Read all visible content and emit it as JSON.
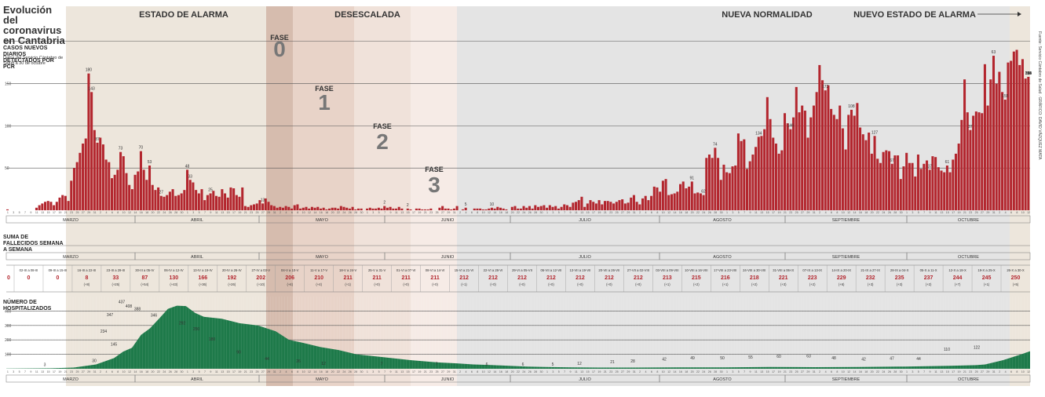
{
  "title": "Evolución del coronavirus en Cantabria",
  "source": "Datos del Servicio Cántabro de Salud a 30 de octubre",
  "credit": "Fuente: Servicio Cántabro de Salud . GRÁFICO: DAVID VÁZQUEZ MATA",
  "colors": {
    "cases": "#b3262e",
    "hospital": "#1e7a4a",
    "stage_alarm": "#ede6dc",
    "fase0": "#d6bcae",
    "fase1": "#e8d3c8",
    "fase2": "#f0e2da",
    "fase3": "#f6ebe6",
    "normal": "#e4e4e4",
    "new_alarm": "#ede6dc",
    "deaths_text": "#b3262e"
  },
  "periods": [
    {
      "label": "ESTADO DE ALARMA",
      "start": 14,
      "end": 54
    },
    {
      "label": "",
      "start": 55,
      "end": 60,
      "phase": "0"
    },
    {
      "label": "DESESCALADA",
      "start": 61,
      "end": 82,
      "phase": "1"
    },
    {
      "label": "",
      "start": 83,
      "end": 96,
      "phase": "2"
    },
    {
      "label": "",
      "start": 97,
      "end": 108,
      "phase": "3"
    },
    {
      "label": "NUEVA NORMALIDAD",
      "start": 109,
      "end": 216
    },
    {
      "label": "NUEVO ESTADO DE ALARMA",
      "start": 217,
      "end": 228
    }
  ],
  "phase_word": "FASE",
  "phases": [
    "0",
    "1",
    "2",
    "3"
  ],
  "months": [
    "MARZO",
    "ABRIL",
    "MAYO",
    "JUNIO",
    "JULIO",
    "AGOSTO",
    "SEPTIEMBRE",
    "OCTUBRE"
  ],
  "chart_data": [
    {
      "type": "bar",
      "title": "CASOS NUEVOS DIARIOS DETECTADOS POR PCR",
      "x_start": "2020-02-29",
      "x_end": "2020-10-30",
      "ylim": [
        0,
        210
      ],
      "yticks": [
        50,
        100,
        150,
        200
      ],
      "values": [
        1,
        0,
        0,
        0,
        0,
        0,
        0,
        0,
        0,
        0,
        3,
        6,
        8,
        10,
        11,
        10,
        6,
        10,
        15,
        18,
        17,
        11,
        35,
        50,
        57,
        68,
        79,
        85,
        162,
        140,
        95,
        80,
        86,
        78,
        60,
        57,
        38,
        42,
        48,
        69,
        64,
        44,
        30,
        25,
        42,
        46,
        70,
        48,
        36,
        53,
        30,
        24,
        27,
        17,
        16,
        18,
        22,
        25,
        17,
        18,
        20,
        24,
        48,
        36,
        33,
        24,
        20,
        25,
        12,
        18,
        20,
        23,
        17,
        16,
        25,
        20,
        15,
        27,
        26,
        18,
        16,
        27,
        5,
        4,
        6,
        7,
        8,
        12,
        8,
        14,
        10,
        6,
        5,
        3,
        4,
        3,
        5,
        4,
        2,
        6,
        7,
        2,
        3,
        4,
        2,
        4,
        3,
        4,
        2,
        3,
        1,
        2,
        3,
        3,
        2,
        5,
        4,
        3,
        2,
        4,
        1,
        2,
        2,
        0,
        2,
        3,
        2,
        2,
        3,
        2,
        5,
        3,
        4,
        2,
        2,
        4,
        2,
        0,
        2,
        1,
        0,
        2,
        2,
        1,
        1,
        1,
        2,
        0,
        0,
        3,
        5,
        2,
        2,
        1,
        2,
        5,
        0,
        1,
        3,
        0,
        0,
        2,
        2,
        2,
        1,
        1,
        2,
        3,
        2,
        4,
        3,
        2,
        1,
        0,
        4,
        5,
        2,
        2,
        5,
        3,
        5,
        2,
        6,
        4,
        5,
        6,
        3,
        6,
        4,
        5,
        2,
        4,
        7,
        6,
        4,
        9,
        10,
        12,
        16,
        4,
        8,
        12,
        10,
        8,
        12,
        7,
        11,
        11,
        10,
        8,
        10,
        12,
        13,
        8,
        9,
        15,
        18,
        10,
        7,
        14,
        17,
        12,
        17,
        28,
        27,
        22,
        35,
        37,
        18,
        19,
        20,
        22,
        31,
        34,
        26,
        28,
        34,
        20,
        21,
        20,
        18,
        62,
        66,
        62,
        74,
        62,
        36,
        54,
        45,
        44,
        52,
        53,
        91,
        82,
        84,
        49,
        58,
        66,
        75,
        87,
        88,
        96,
        134,
        108,
        86,
        79,
        67,
        71,
        115,
        103,
        96,
        110,
        146,
        116,
        124,
        118,
        86,
        110,
        124,
        140,
        172,
        154,
        142,
        148,
        120,
        113,
        108,
        124,
        97,
        72,
        113,
        119,
        112,
        127,
        98,
        90,
        83,
        92,
        67,
        88,
        61,
        56,
        69,
        71,
        70,
        55,
        65,
        65,
        37,
        52,
        68,
        56,
        56,
        40,
        66,
        49,
        55,
        59,
        48,
        64,
        63,
        51,
        47,
        45,
        53,
        45,
        60,
        67,
        79,
        107,
        155,
        116,
        95,
        112,
        117,
        116,
        115,
        173,
        124,
        155,
        183,
        150,
        164,
        140,
        131,
        175,
        177,
        188,
        190,
        172,
        179,
        156,
        158
      ]
    },
    {
      "type": "table",
      "title": "SUMA DE FALLECIDOS SEMANA A SEMANA",
      "periods": [
        "02-III a 08-III",
        "09-III a 15-III",
        "16-III a 22-III",
        "23-III a 29-III",
        "30-III a 05-IV",
        "06-IV a 12-IV",
        "13-IV a 19-IV",
        "20-IV a 26-IV",
        "27-IV a 03-V",
        "04-V a 10-V",
        "11-V a 17-V",
        "18-V a 24-V",
        "25-V a 31-V",
        "01-VI a 07-VI",
        "08-VI a 14-VI",
        "15-VI a 21-VI",
        "22-VI a 28-VI",
        "29-VI a 05-VII",
        "06-VII a 12-VII",
        "13-VII a 19-VII",
        "20-VII a 26-VII",
        "27-VII a 02-VIII",
        "03-VIII a 09-VIII",
        "10-VIII a 16-VIII",
        "17-VIII a 23-VIII",
        "24-VIII a 30-VIII",
        "31-VIII a 06-IX",
        "07-IX a 13-IX",
        "14-IX a 20-IX",
        "21-IX a 27-IX",
        "28-IX a 04-X",
        "05-X a 11-X",
        "12-X a 18-X",
        "19-X a 25-X",
        "26-X a 30-X"
      ],
      "totals": [
        0,
        0,
        8,
        33,
        87,
        130,
        166,
        192,
        202,
        206,
        210,
        211,
        211,
        211,
        211,
        212,
        212,
        212,
        212,
        212,
        212,
        212,
        213,
        215,
        216,
        218,
        221,
        223,
        229,
        232,
        235,
        237,
        244,
        245,
        250
      ],
      "weekly": [
        "",
        "",
        "(+8)",
        "(+25)",
        "(+54)",
        "(+43)",
        "(+36)",
        "(+26)",
        "(+10)",
        "(+4)",
        "(+4)",
        "(+1)",
        "(+0)",
        "(+0)",
        "(+0)",
        "(+1)",
        "(+0)",
        "(+0)",
        "(+0)",
        "(+0)",
        "(+0)",
        "(+0)",
        "(+1)",
        "(+2)",
        "(+1)",
        "(+2)",
        "(+3)",
        "(+2)",
        "(+6)",
        "(+3)",
        "(+3)",
        "(+2)",
        "(+7)",
        "(+1)",
        "(+5)"
      ],
      "first_total": "0"
    },
    {
      "type": "area",
      "title": "NÚMERO DE HOSPITALIZADOS",
      "x_start": "2020-02-29",
      "x_end": "2020-10-30",
      "ylim": [
        0,
        500
      ],
      "yticks": [
        100,
        200,
        300,
        400
      ],
      "x": [
        0,
        10,
        15,
        20,
        24,
        26,
        28,
        30,
        32,
        34,
        36,
        38,
        40,
        42,
        44,
        48,
        52,
        56,
        60,
        63,
        66,
        70,
        74,
        78,
        84,
        90,
        96,
        100,
        104,
        108,
        112,
        116,
        120,
        126,
        132,
        140,
        150,
        160,
        170,
        180,
        190,
        200,
        210,
        216,
        218,
        222,
        226,
        228
      ],
      "values": [
        1,
        3,
        8,
        30,
        74,
        118,
        145,
        234,
        280,
        347,
        415,
        437,
        434,
        388,
        360,
        346,
        315,
        300,
        260,
        200,
        180,
        150,
        130,
        100,
        80,
        60,
        44,
        38,
        30,
        26,
        20,
        15,
        12,
        10,
        8,
        8,
        9,
        10,
        12,
        11,
        12,
        15,
        20,
        25,
        30,
        60,
        100,
        122
      ],
      "labels": [
        {
          "x": 17,
          "v": 3
        },
        {
          "x": 27,
          "v": 145
        },
        {
          "x": 31,
          "v": 234
        },
        {
          "x": 35,
          "v": 347
        },
        {
          "x": 38,
          "v": 437
        },
        {
          "x": 40,
          "v": 408
        },
        {
          "x": 43,
          "v": 388
        },
        {
          "x": 48,
          "v": 346
        },
        {
          "x": 56,
          "v": 292
        },
        {
          "x": 60,
          "v": 250
        },
        {
          "x": 66,
          "v": 180
        },
        {
          "x": 74,
          "v": 140
        },
        {
          "x": 84,
          "v": 90
        },
        {
          "x": 96,
          "v": 44
        },
        {
          "x": 108,
          "v": 26
        },
        {
          "x": 130,
          "v": 12
        },
        {
          "x": 140,
          "v": 10
        },
        {
          "x": 152,
          "v": 13
        },
        {
          "x": 162,
          "v": 7
        },
        {
          "x": 174,
          "v": 7
        },
        {
          "x": 184,
          "v": 7
        },
        {
          "x": 196,
          "v": 5
        },
        {
          "x": 210,
          "v": 5
        },
        {
          "x": 220,
          "v": 6
        },
        {
          "x": 230,
          "v": 6
        },
        {
          "x": 242,
          "v": 5
        },
        {
          "x": 255,
          "v": 12
        },
        {
          "x": 266,
          "v": 21
        },
        {
          "x": 278,
          "v": 28
        },
        {
          "x": 290,
          "v": 42
        },
        {
          "x": 302,
          "v": 49
        },
        {
          "x": 314,
          "v": 50
        },
        {
          "x": 328,
          "v": 55
        },
        {
          "x": 344,
          "v": 60
        },
        {
          "x": 356,
          "v": 63
        },
        {
          "x": 368,
          "v": 48
        },
        {
          "x": 378,
          "v": 42
        },
        {
          "x": 388,
          "v": 47
        },
        {
          "x": 398,
          "v": 44
        },
        {
          "x": 410,
          "v": 110
        },
        {
          "x": 416,
          "v": 122
        }
      ]
    }
  ]
}
